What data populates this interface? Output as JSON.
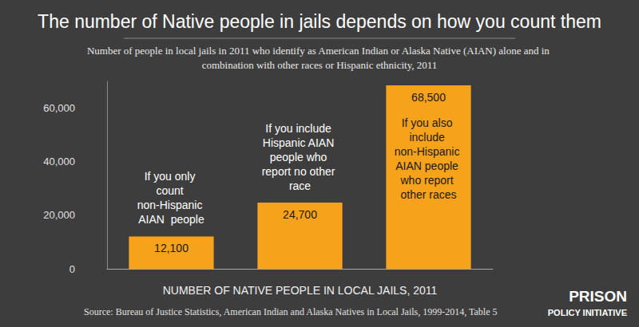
{
  "chart_data": {
    "type": "bar",
    "title": "The number of Native people in jails depends on how you count them",
    "subtitle": "Number of people in local jails in 2011 who identify as American Indian or Alaska Native (AIAN) alone and in combination with other races or Hispanic ethnicity, 2011",
    "xlabel": "NUMBER OF NATIVE PEOPLE IN LOCAL JAILS, 2011",
    "categories": [
      "If you only count non-Hispanic AIAN  people",
      "If you include Hispanic AIAN people who report no other race",
      "If you also include non-Hispanic AIAN people who report other races"
    ],
    "values": [
      12100,
      24700,
      68500
    ],
    "value_labels": [
      "12,100",
      "24,700",
      "68,500"
    ],
    "color": "#f7a21b",
    "ylim": [
      0,
      70000
    ],
    "yticks": [
      0,
      {
        "value": 20000,
        "label": "20,000"
      },
      {
        "value": 40000,
        "label": "40,000"
      },
      {
        "value": 60000,
        "label": "60,000"
      }
    ],
    "grid": false,
    "data_labels": true,
    "tick_labels": "y",
    "source": "Source: Bureau of Justice Statistics, American Indian and Alaska Natives in Local Jails, 1999-2014, Table 5",
    "logo": [
      "PRISON",
      "POLICY INITIATIVE"
    ]
  }
}
